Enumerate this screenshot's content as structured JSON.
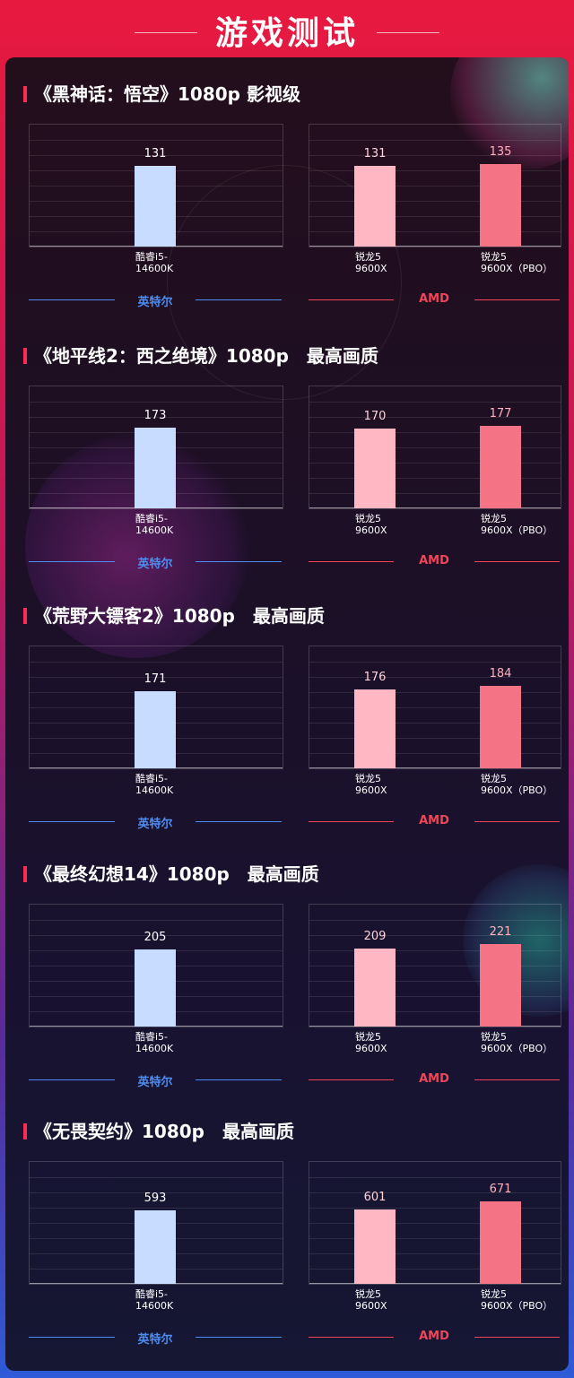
{
  "header": {
    "title": "游戏测试"
  },
  "colors": {
    "intel_bar": "#c8dcff",
    "amd_bar": "#ffb7c3",
    "amd_pbo_bar": "#f47486",
    "intel_label": "#4d8cf0",
    "amd_label": "#f04458"
  },
  "legend": {
    "intel": "英特尔",
    "amd": "AMD"
  },
  "chart_data": [
    {
      "type": "bar",
      "title": "《黑神话：悟空》1080p  影视级",
      "groups": [
        {
          "name": "英特尔",
          "categories": [
            "酷睿i5-\n14600K"
          ],
          "values": [
            131
          ]
        },
        {
          "name": "AMD",
          "categories": [
            "锐龙5\n9600X",
            "锐龙5\n9600X（PBO）"
          ],
          "values": [
            131,
            135
          ]
        }
      ]
    },
    {
      "type": "bar",
      "title": "《地平线2：西之绝境》1080p　最高画质",
      "groups": [
        {
          "name": "英特尔",
          "categories": [
            "酷睿i5-\n14600K"
          ],
          "values": [
            173
          ]
        },
        {
          "name": "AMD",
          "categories": [
            "锐龙5\n9600X",
            "锐龙5\n9600X（PBO）"
          ],
          "values": [
            170,
            177
          ]
        }
      ]
    },
    {
      "type": "bar",
      "title": "《荒野大镖客2》1080p　最高画质",
      "groups": [
        {
          "name": "英特尔",
          "categories": [
            "酷睿i5-\n14600K"
          ],
          "values": [
            171
          ]
        },
        {
          "name": "AMD",
          "categories": [
            "锐龙5\n9600X",
            "锐龙5\n9600X（PBO）"
          ],
          "values": [
            176,
            184
          ]
        }
      ]
    },
    {
      "type": "bar",
      "title": "《最终幻想14》1080p　最高画质",
      "groups": [
        {
          "name": "英特尔",
          "categories": [
            "酷睿i5-\n14600K"
          ],
          "values": [
            205
          ]
        },
        {
          "name": "AMD",
          "categories": [
            "锐龙5\n9600X",
            "锐龙5\n9600X（PBO）"
          ],
          "values": [
            209,
            221
          ]
        }
      ]
    },
    {
      "type": "bar",
      "title": "《无畏契约》1080p　最高画质",
      "groups": [
        {
          "name": "英特尔",
          "categories": [
            "酷睿i5-\n14600K"
          ],
          "values": [
            593
          ]
        },
        {
          "name": "AMD",
          "categories": [
            "锐龙5\n9600X",
            "锐龙5\n9600X（PBO）"
          ],
          "values": [
            601,
            671
          ]
        }
      ]
    }
  ]
}
